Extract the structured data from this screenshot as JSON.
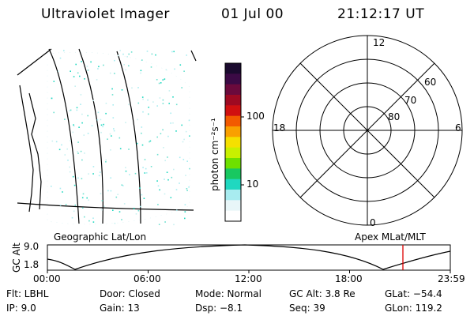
{
  "header": {
    "instrument": "Ultraviolet Imager",
    "date": "01 Jul 00",
    "time": "21:12:17 UT"
  },
  "colorbar": {
    "unit_label": "photon cm⁻²s⁻¹",
    "ticks": [
      "100",
      "10"
    ],
    "colors": [
      "#1a0a2e",
      "#3b0a45",
      "#6b0a3c",
      "#9e0a22",
      "#d01010",
      "#f25a00",
      "#f9a000",
      "#f5e000",
      "#c8f000",
      "#6ee000",
      "#18c860",
      "#20d8c0",
      "#a8ecf0",
      "#e8f6f8",
      "#ffffff"
    ]
  },
  "polar_plot": {
    "hour_labels": [
      "12",
      "18",
      "6",
      "0"
    ],
    "lat_labels": [
      "60",
      "70",
      "80"
    ]
  },
  "image_panel_caption": "Geographic Lat/Lon",
  "polar_panel_caption": "Apex MLat/MLT",
  "altitude_plot": {
    "ylabel": "GC Alt",
    "yticks": [
      "9.0",
      "1.8"
    ],
    "xticks": [
      "00:00",
      "06:00",
      "12:00",
      "18:00",
      "23:59"
    ],
    "marker_color": "#dd0000"
  },
  "info": {
    "filter": "Flt: LBHL",
    "door": "Door: Closed",
    "mode": "Mode: Normal",
    "gc_alt": "GC Alt: 3.8 Re",
    "glat": "GLat: −54.4",
    "ip": "IP:  9.0",
    "gain": "Gain: 13",
    "dsp": "Dsp:   −8.1",
    "seq": "Seq: 39",
    "glon": "GLon: 119.2"
  }
}
